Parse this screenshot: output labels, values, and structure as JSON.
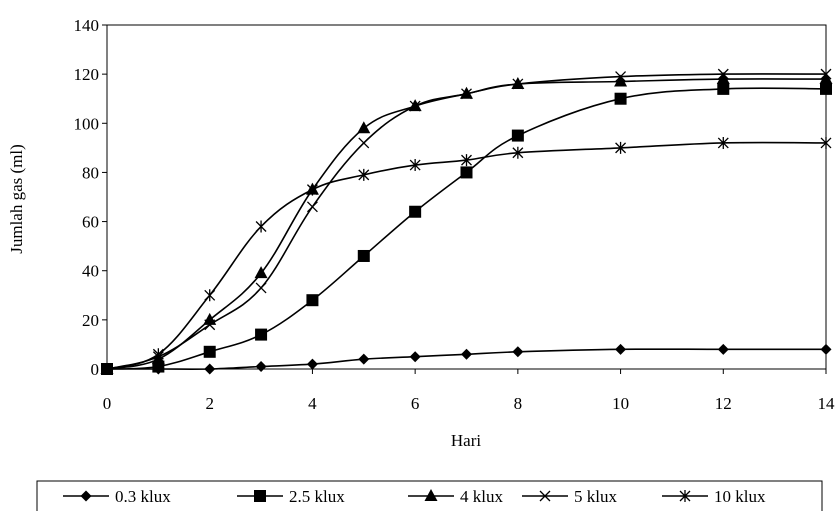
{
  "chart_data": {
    "type": "line",
    "title": "",
    "xlabel": "Hari",
    "ylabel": "Jumlah gas (ml)",
    "xlim": [
      0,
      14
    ],
    "ylim": [
      0,
      140
    ],
    "x_ticks": [
      "0",
      "2",
      "4",
      "6",
      "8",
      "10",
      "12",
      "14"
    ],
    "y_ticks": [
      "0",
      "20",
      "40",
      "60",
      "80",
      "100",
      "120",
      "140"
    ],
    "grid": false,
    "legend_position": "bottom",
    "series": [
      {
        "name": "0.3 klux",
        "marker": "diamond",
        "x": [
          0,
          1,
          2,
          3,
          4,
          5,
          6,
          7,
          8,
          10,
          12,
          14
        ],
        "y": [
          0,
          0,
          0,
          1,
          2,
          4,
          5,
          6,
          7,
          8,
          8,
          8
        ]
      },
      {
        "name": "2.5 klux",
        "marker": "square",
        "x": [
          0,
          1,
          2,
          3,
          4,
          5,
          6,
          7,
          8,
          10,
          12,
          14
        ],
        "y": [
          0,
          1,
          7,
          14,
          28,
          46,
          64,
          80,
          95,
          110,
          114,
          114
        ]
      },
      {
        "name": "4 klux",
        "marker": "triangle",
        "x": [
          0,
          1,
          2,
          3,
          4,
          5,
          6,
          7,
          8,
          10,
          12,
          14
        ],
        "y": [
          0,
          4,
          20,
          39,
          73,
          98,
          107,
          112,
          116,
          117,
          118,
          118
        ]
      },
      {
        "name": "5 klux",
        "marker": "x",
        "x": [
          0,
          1,
          2,
          3,
          4,
          5,
          6,
          7,
          8,
          10,
          12,
          14
        ],
        "y": [
          0,
          5,
          18,
          33,
          66,
          92,
          107,
          112,
          116,
          119,
          120,
          120
        ]
      },
      {
        "name": "10 klux",
        "marker": "star",
        "x": [
          0,
          1,
          2,
          3,
          4,
          5,
          6,
          7,
          8,
          10,
          12,
          14
        ],
        "y": [
          0,
          6,
          30,
          58,
          73,
          79,
          83,
          85,
          88,
          90,
          92,
          92
        ]
      }
    ]
  }
}
